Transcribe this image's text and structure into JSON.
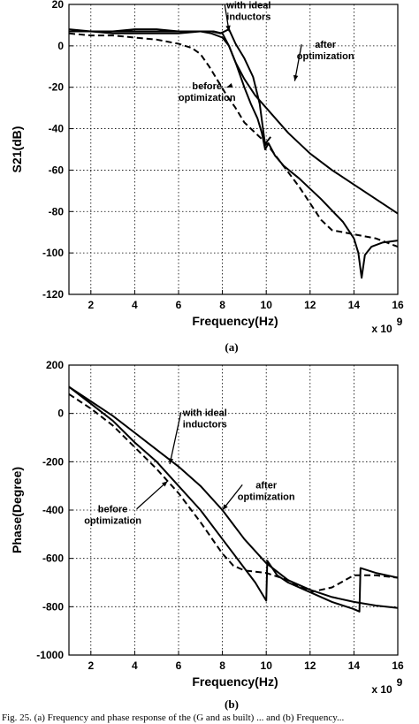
{
  "caption": "Fig. 25.   (a) Frequency and phase response of the (G and as built) ... and   (b) Frequency...",
  "chart_data": [
    {
      "type": "line",
      "sublabel": "(a)",
      "xlabel": "Frequency(Hz)",
      "ylabel": "S21(dB)",
      "x_multiplier": "x 10",
      "x_multiplier_exp": "9",
      "xlim": [
        1,
        16
      ],
      "ylim": [
        -120,
        20
      ],
      "xticks": [
        2,
        4,
        6,
        8,
        10,
        12,
        14,
        16
      ],
      "yticks": [
        -120,
        -100,
        -80,
        -60,
        -40,
        -20,
        0,
        20
      ],
      "grid": true,
      "series": [
        {
          "style": "solid",
          "x": [
            1,
            2,
            3,
            4,
            5,
            6,
            7,
            7.5,
            8,
            8.3,
            8.6,
            9,
            9.3,
            9.6,
            9.8,
            9.95,
            10.1,
            10.4,
            10.8,
            11.5,
            12.5,
            13.5,
            14,
            14.2,
            14.35,
            14.5,
            14.8,
            15.3,
            16
          ],
          "y": [
            8,
            7,
            7,
            8,
            8,
            7,
            7,
            6,
            4,
            0,
            -8,
            -20,
            -28,
            -35,
            -42,
            -50,
            -47,
            -53,
            -58,
            -64,
            -74,
            -85,
            -93,
            -100,
            -112,
            -101,
            -97,
            -95,
            -94
          ]
        },
        {
          "style": "solid",
          "x": [
            1,
            2,
            3,
            4,
            5,
            6,
            7,
            7.6,
            8.0,
            8.3,
            8.6,
            9,
            9.5,
            10,
            11,
            12,
            13,
            14,
            15,
            16
          ],
          "y": [
            7,
            7,
            6,
            6,
            6,
            6,
            7,
            7,
            6,
            0,
            -8,
            -16,
            -24,
            -30,
            -42,
            -52,
            -60,
            -67,
            -74,
            -81
          ]
        },
        {
          "style": "solid",
          "x": [
            1,
            3,
            6,
            7.5,
            7.9,
            8.1,
            8.3,
            8.6,
            9,
            9.4,
            9.7,
            9.85,
            9.95,
            10.05,
            10.2
          ],
          "y": [
            7,
            7,
            7,
            7,
            6,
            7,
            8,
            1,
            -6,
            -15,
            -28,
            -40,
            -48,
            -46,
            -44
          ]
        },
        {
          "style": "dashed",
          "x": [
            1,
            2,
            3,
            4,
            5,
            6,
            6.6,
            7,
            7.4,
            7.8,
            8.2,
            8.6,
            9,
            9.5,
            10,
            10.5,
            11,
            11.5,
            12,
            12.5,
            13,
            13.5,
            14,
            15,
            16
          ],
          "y": [
            6,
            5,
            5,
            4,
            3,
            1,
            -1,
            -4,
            -10,
            -17,
            -24,
            -30,
            -37,
            -42,
            -47,
            -54,
            -61,
            -68,
            -76,
            -84,
            -89,
            -90,
            -91,
            -93,
            -97
          ]
        }
      ],
      "annotations": [
        {
          "lines": [
            "with ideal",
            "inductors"
          ],
          "x": 9.2,
          "y": 18,
          "arrow_to": [
            8.3,
            7
          ]
        },
        {
          "lines": [
            "after",
            "optimization"
          ],
          "x": 12.7,
          "y": -1,
          "arrow_to": [
            11.3,
            -17
          ]
        },
        {
          "lines": [
            "before",
            "optimization"
          ],
          "x": 7.3,
          "y": -21,
          "arrow_to": [
            8.2,
            -20
          ]
        }
      ]
    },
    {
      "type": "line",
      "sublabel": "(b)",
      "xlabel": "Frequency(Hz)",
      "ylabel": "Phase(Degree)",
      "x_multiplier": "x 10",
      "x_multiplier_exp": "9",
      "xlim": [
        1,
        16
      ],
      "ylim": [
        -1000,
        200
      ],
      "xticks": [
        2,
        4,
        6,
        8,
        10,
        12,
        14,
        16
      ],
      "yticks": [
        -1000,
        -800,
        -600,
        -400,
        -200,
        0,
        200
      ],
      "grid": true,
      "series": [
        {
          "style": "solid",
          "x": [
            1,
            2,
            3,
            4,
            5,
            6,
            7,
            8,
            8.5,
            9,
            9.5,
            10,
            10.05,
            10.5,
            11,
            12,
            13,
            14,
            14.25,
            14.3,
            15,
            16
          ],
          "y": [
            110,
            40,
            -30,
            -120,
            -200,
            -300,
            -400,
            -520,
            -580,
            -640,
            -700,
            -775,
            -610,
            -670,
            -700,
            -740,
            -780,
            -810,
            -820,
            -640,
            -660,
            -680
          ]
        },
        {
          "style": "solid",
          "x": [
            1,
            2,
            3,
            4,
            5,
            6,
            7,
            8,
            9,
            10,
            11,
            12,
            13,
            14,
            15,
            16
          ],
          "y": [
            110,
            50,
            -10,
            -80,
            -150,
            -220,
            -300,
            -400,
            -520,
            -620,
            -690,
            -730,
            -760,
            -780,
            -795,
            -805
          ]
        },
        {
          "style": "dashed",
          "x": [
            1,
            2,
            3,
            4,
            5,
            6,
            7,
            8,
            8.5,
            9,
            9.5,
            10,
            11,
            12,
            13,
            14,
            15,
            16
          ],
          "y": [
            80,
            20,
            -50,
            -140,
            -230,
            -330,
            -450,
            -580,
            -630,
            -650,
            -655,
            -660,
            -690,
            -740,
            -720,
            -670,
            -670,
            -680
          ]
        }
      ],
      "annotations": [
        {
          "lines": [
            "with ideal",
            "inductors"
          ],
          "x": 7.2,
          "y": -10,
          "arrow_to": [
            5.6,
            -210
          ]
        },
        {
          "lines": [
            "after",
            "optimization"
          ],
          "x": 10,
          "y": -310,
          "arrow_to": [
            8.0,
            -400
          ]
        },
        {
          "lines": [
            "before",
            "optimization"
          ],
          "x": 3.0,
          "y": -410,
          "arrow_to": [
            5.5,
            -280
          ]
        }
      ]
    }
  ]
}
